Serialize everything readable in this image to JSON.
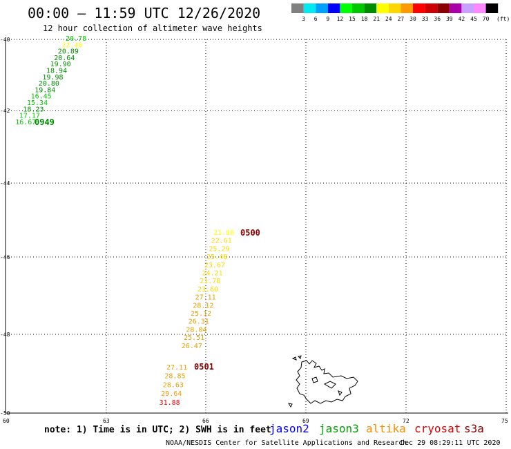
{
  "header": {
    "title": "00:00 — 11:59 UTC 12/26/2020",
    "subtitle": "12 hour collection of altimeter wave heights"
  },
  "legend": {
    "unit": "(ft)",
    "bins": [
      {
        "label": "3",
        "color": "#808080"
      },
      {
        "label": "6",
        "color": "#00e8f0"
      },
      {
        "label": "9",
        "color": "#00a0ff"
      },
      {
        "label": "12",
        "color": "#0000ff"
      },
      {
        "label": "15",
        "color": "#00ff00"
      },
      {
        "label": "18",
        "color": "#00c800"
      },
      {
        "label": "21",
        "color": "#008c00"
      },
      {
        "label": "24",
        "color": "#ffff00"
      },
      {
        "label": "27",
        "color": "#ffd700"
      },
      {
        "label": "30",
        "color": "#ff9900"
      },
      {
        "label": "33",
        "color": "#ff0000"
      },
      {
        "label": "36",
        "color": "#cc0000"
      },
      {
        "label": "39",
        "color": "#8b0000"
      },
      {
        "label": "42",
        "color": "#aa00aa"
      },
      {
        "label": "45",
        "color": "#c8a0ff"
      },
      {
        "label": "70",
        "color": "#ff88ff"
      },
      {
        "label": "",
        "color": "#000000"
      }
    ]
  },
  "axes": {
    "lat_labels": [
      "-40",
      "-42",
      "-44",
      "-46",
      "-48",
      "-50"
    ],
    "lon_labels": [
      "60",
      "63",
      "66",
      "69",
      "72",
      "75"
    ]
  },
  "tracks": [
    {
      "time_label": "0949",
      "time_color": "#008c00",
      "points": [
        {
          "v": "20.78",
          "color": "#00c800"
        },
        {
          "v": "22.46",
          "color": "#ffff00"
        },
        {
          "v": "20.89",
          "color": "#008c00"
        },
        {
          "v": "20.64",
          "color": "#008c00"
        },
        {
          "v": "19.90",
          "color": "#008c00"
        },
        {
          "v": "18.94",
          "color": "#008c00"
        },
        {
          "v": "19.98",
          "color": "#008c00"
        },
        {
          "v": "20.80",
          "color": "#008c00"
        },
        {
          "v": "19.84",
          "color": "#008c00"
        },
        {
          "v": "16.45",
          "color": "#00c800"
        },
        {
          "v": "15.34",
          "color": "#00c800"
        },
        {
          "v": "18.23",
          "color": "#008c00"
        },
        {
          "v": "17.17",
          "color": "#00c800"
        },
        {
          "v": "16.67",
          "color": "#00c800"
        }
      ]
    },
    {
      "time_label": "0500",
      "time_color": "#8b0000",
      "points": [
        {
          "v": "21.86",
          "color": "#ffff00"
        },
        {
          "v": "22.61",
          "color": "#ffd700"
        },
        {
          "v": "25.29",
          "color": "#ffd700"
        },
        {
          "v": "25.48",
          "color": "#ffd700"
        },
        {
          "v": "23.67",
          "color": "#ffd700"
        },
        {
          "v": "24.21",
          "color": "#ffd700"
        },
        {
          "v": "21.78",
          "color": "#ffd700"
        },
        {
          "v": "23.60",
          "color": "#ffd700"
        },
        {
          "v": "27.11",
          "color": "#e6a000"
        },
        {
          "v": "28.12",
          "color": "#e6a000"
        },
        {
          "v": "25.12",
          "color": "#e6a000"
        },
        {
          "v": "26.31",
          "color": "#e6a000"
        },
        {
          "v": "28.04",
          "color": "#e6a000"
        },
        {
          "v": "25.51",
          "color": "#e6a000"
        },
        {
          "v": "26.47",
          "color": "#e6a000"
        }
      ]
    },
    {
      "time_label": "0501",
      "time_color": "#8b0000",
      "points": [
        {
          "v": "27.11",
          "color": "#e6a000"
        },
        {
          "v": "28.85",
          "color": "#e6a000"
        },
        {
          "v": "28.63",
          "color": "#e6a000"
        },
        {
          "v": "29.64",
          "color": "#ff9900"
        },
        {
          "v": "31.88",
          "color": "#ff0000"
        }
      ]
    }
  ],
  "footer": {
    "note": "note:  1) Time is in UTC; 2) SWH is in feet",
    "satellites": [
      {
        "name": "jason2",
        "color": "#0000ff"
      },
      {
        "name": "jason3",
        "color": "#00a000"
      },
      {
        "name": "altika",
        "color": "#ff8c00"
      },
      {
        "name": "cryosat",
        "color": "#dd0000"
      },
      {
        "name": "s3a",
        "color": "#8b0000"
      }
    ],
    "credit": "NOAA/NESDIS Center for Satellite Applications and Research",
    "timestamp": "Dec 29 08:29:11 UTC 2020"
  }
}
